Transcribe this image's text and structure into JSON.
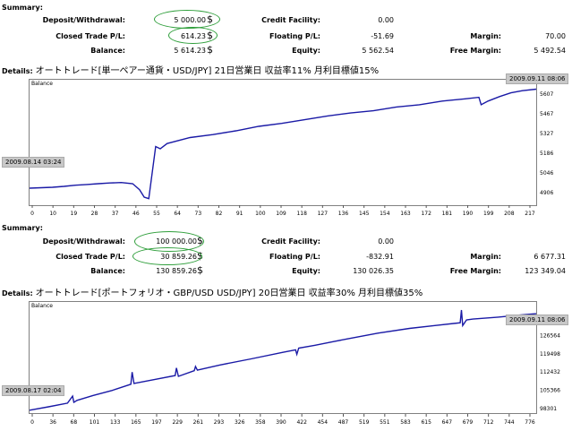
{
  "report1": {
    "summary_label": "Summary:",
    "deposit_label": "Deposit/Withdrawal:",
    "deposit_value": "5 000.00",
    "closed_label": "Closed Trade P/L:",
    "closed_value": "614.23",
    "balance_label": "Balance:",
    "balance_value": "5 614.23",
    "credit_label": "Credit Facility:",
    "credit_value": "0.00",
    "floating_label": "Floating P/L:",
    "floating_value": "-51.69",
    "equity_label": "Equity:",
    "equity_value": "5 562.54",
    "margin_label": "Margin:",
    "margin_value": "70.00",
    "free_margin_label": "Free Margin:",
    "free_margin_value": "5 492.54",
    "currency": "$",
    "details_label": "Details:",
    "details_text": "オートトレード[単一ペアー通貨・USD/JPY] 21日営業日 収益率11% 月利目標値15%",
    "chart_title": "Balance",
    "date_start": "2009.08.14 03:24",
    "date_end": "2009.09.11 08:06"
  },
  "report2": {
    "summary_label": "Summary:",
    "deposit_label": "Deposit/Withdrawal:",
    "deposit_value": "100 000.00",
    "closed_label": "Closed Trade P/L:",
    "closed_value": "30 859.26",
    "balance_label": "Balance:",
    "balance_value": "130 859.26",
    "credit_label": "Credit Facility:",
    "credit_value": "0.00",
    "floating_label": "Floating P/L:",
    "floating_value": "-832.91",
    "equity_label": "Equity:",
    "equity_value": "130 026.35",
    "margin_label": "Margin:",
    "margin_value": "6 677.31",
    "free_margin_label": "Free Margin:",
    "free_margin_value": "123 349.04",
    "currency": "$",
    "details_label": "Details:",
    "details_text": "オートトレード[ポートフォリオ・GBP/USD USD/JPY] 20日営業日 収益率30% 月利目標値35%",
    "chart_title": "Balance",
    "date_start": "2009.08.17 02:04",
    "date_end": "2009.09.11 08:06"
  },
  "colors": {
    "line": "#1a1aa6",
    "oval": "#2e9e3a",
    "flag_bg": "#c8c8c8"
  },
  "chart_data": [
    {
      "type": "line",
      "title": "Balance",
      "xlabel": "",
      "ylabel": "",
      "x_ticks": [
        "0",
        "10",
        "19",
        "28",
        "37",
        "46",
        "55",
        "64",
        "73",
        "82",
        "91",
        "100",
        "109",
        "118",
        "127",
        "136",
        "145",
        "154",
        "163",
        "172",
        "181",
        "190",
        "199",
        "208",
        "217"
      ],
      "y_ticks": [
        "4906",
        "5046",
        "5186",
        "5327",
        "5467",
        "5607"
      ],
      "xlim": [
        0,
        221
      ],
      "ylim": [
        4906,
        5640
      ],
      "grid": false,
      "series": [
        {
          "x": [
            0,
            5,
            10,
            15,
            20,
            25,
            30,
            35,
            40,
            45,
            48,
            50,
            52,
            55,
            57,
            60,
            70,
            80,
            90,
            100,
            110,
            120,
            130,
            140,
            150,
            160,
            170,
            180,
            190,
            196,
            197,
            200,
            205,
            210,
            215,
            221
          ],
          "y": [
            4960,
            4963,
            4966,
            4972,
            4980,
            4985,
            4990,
            4995,
            4998,
            4990,
            4950,
            4900,
            4890,
            5240,
            5225,
            5260,
            5300,
            5320,
            5345,
            5375,
            5395,
            5420,
            5445,
            5465,
            5480,
            5505,
            5520,
            5545,
            5560,
            5570,
            5520,
            5545,
            5575,
            5600,
            5615,
            5625
          ]
        }
      ]
    },
    {
      "type": "line",
      "title": "Balance",
      "xlabel": "",
      "ylabel": "",
      "x_ticks": [
        "0",
        "36",
        "68",
        "101",
        "133",
        "165",
        "197",
        "229",
        "261",
        "293",
        "326",
        "358",
        "390",
        "422",
        "454",
        "487",
        "519",
        "551",
        "583",
        "615",
        "647",
        "679",
        "712",
        "744",
        "776"
      ],
      "y_ticks": [
        "98301",
        "105366",
        "112432",
        "119498",
        "126564",
        "133629"
      ],
      "xlim": [
        0,
        800
      ],
      "ylim": [
        98301,
        134500
      ],
      "grid": false,
      "series": [
        {
          "x": [
            0,
            30,
            60,
            68,
            70,
            75,
            100,
            130,
            160,
            162,
            165,
            200,
            230,
            232,
            235,
            260,
            262,
            265,
            300,
            350,
            400,
            420,
            422,
            425,
            450,
            500,
            550,
            600,
            640,
            680,
            682,
            684,
            690,
            700,
            740,
            776,
            800
          ],
          "y": [
            99000,
            100200,
            101500,
            104000,
            101800,
            102500,
            104200,
            106000,
            108200,
            112500,
            108500,
            110000,
            111300,
            114000,
            111000,
            113000,
            114500,
            113200,
            115000,
            117200,
            119500,
            120400,
            118800,
            121000,
            122000,
            124200,
            126300,
            128000,
            129000,
            130000,
            134500,
            129000,
            131000,
            131300,
            132000,
            132800,
            133200
          ]
        }
      ]
    }
  ]
}
